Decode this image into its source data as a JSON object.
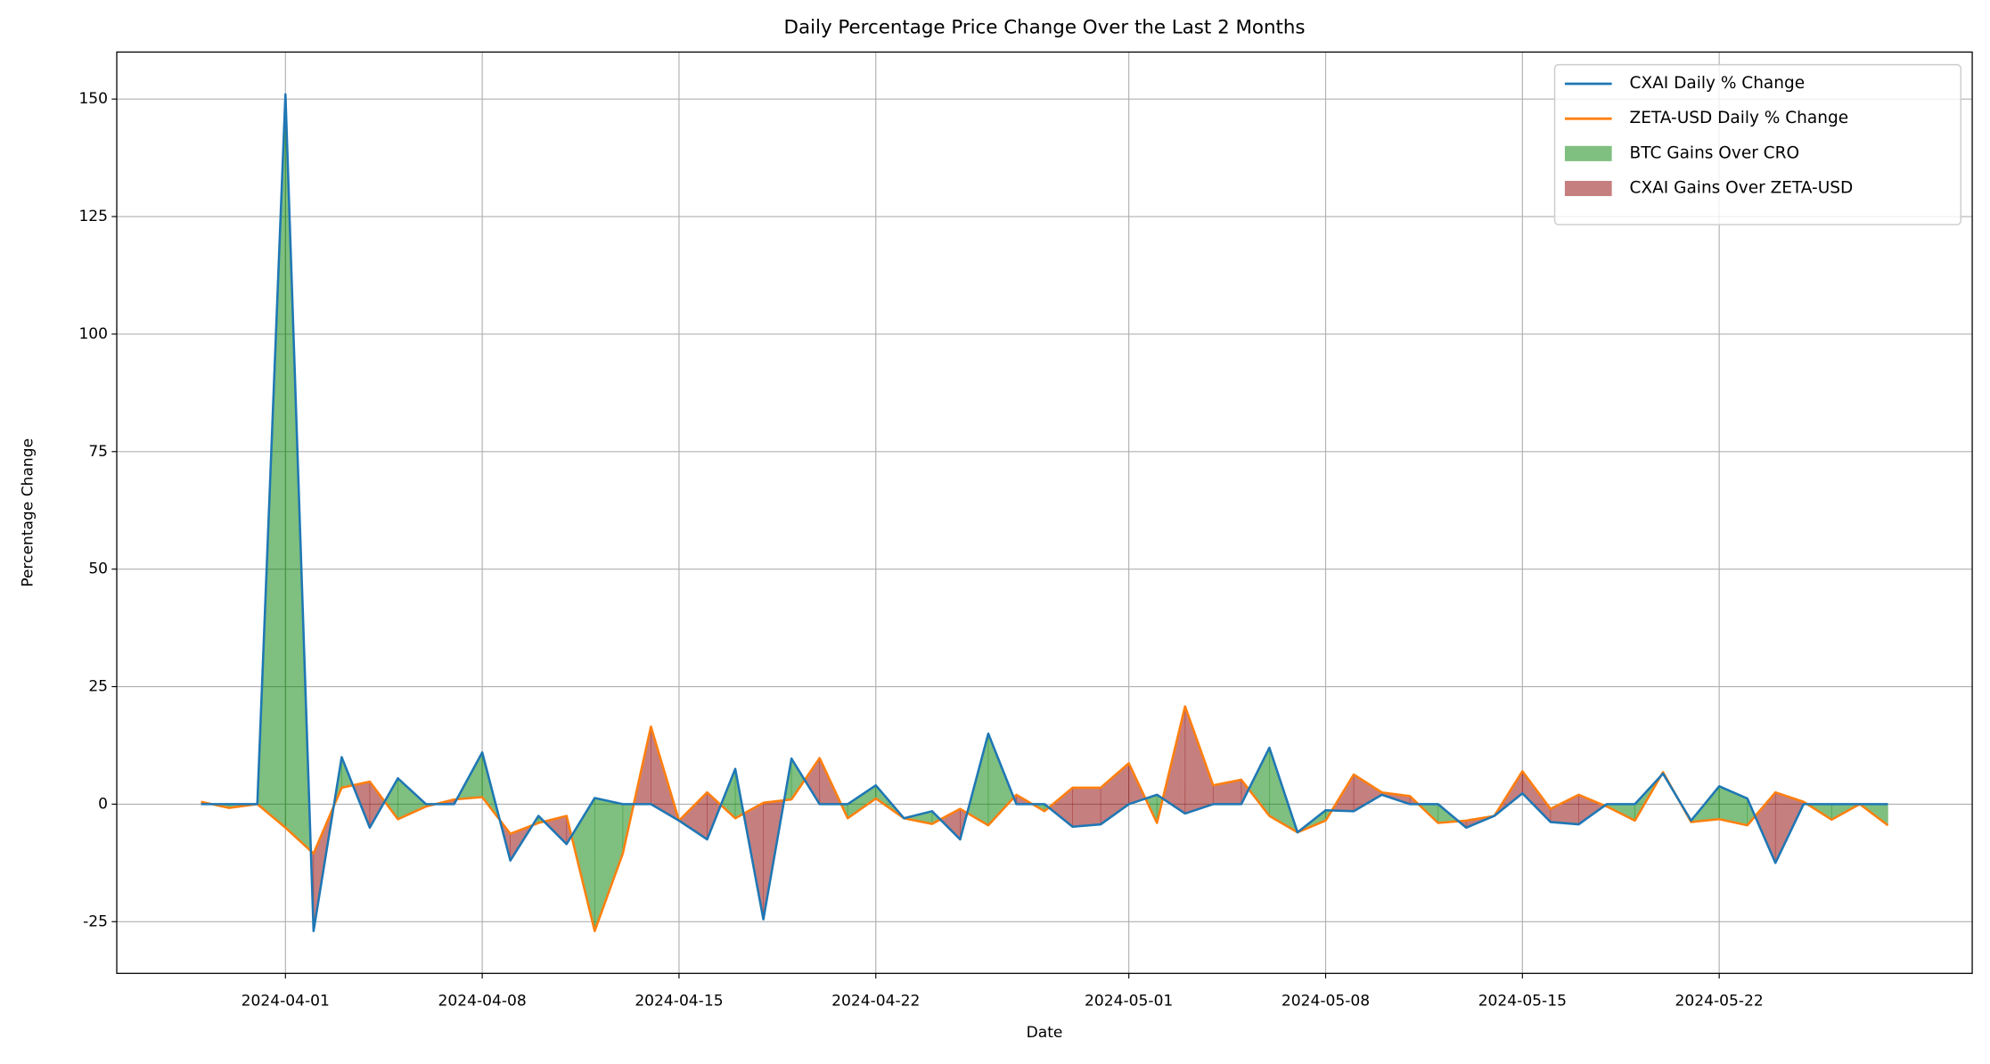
{
  "chart_data": {
    "type": "line",
    "title": "Daily Percentage Price Change Over the Last 2 Months",
    "x_label": "Date",
    "y_label": "Percentage Change",
    "x": [
      "2024-03-29",
      "2024-03-30",
      "2024-03-31",
      "2024-04-01",
      "2024-04-02",
      "2024-04-03",
      "2024-04-04",
      "2024-04-05",
      "2024-04-06",
      "2024-04-07",
      "2024-04-08",
      "2024-04-09",
      "2024-04-10",
      "2024-04-11",
      "2024-04-12",
      "2024-04-13",
      "2024-04-14",
      "2024-04-15",
      "2024-04-16",
      "2024-04-17",
      "2024-04-18",
      "2024-04-19",
      "2024-04-20",
      "2024-04-21",
      "2024-04-22",
      "2024-04-23",
      "2024-04-24",
      "2024-04-25",
      "2024-04-26",
      "2024-04-27",
      "2024-04-28",
      "2024-04-29",
      "2024-04-30",
      "2024-05-01",
      "2024-05-02",
      "2024-05-03",
      "2024-05-04",
      "2024-05-05",
      "2024-05-06",
      "2024-05-07",
      "2024-05-08",
      "2024-05-09",
      "2024-05-10",
      "2024-05-11",
      "2024-05-12",
      "2024-05-13",
      "2024-05-14",
      "2024-05-15",
      "2024-05-16",
      "2024-05-17",
      "2024-05-18",
      "2024-05-19",
      "2024-05-20",
      "2024-05-21",
      "2024-05-22",
      "2024-05-23",
      "2024-05-24",
      "2024-05-25",
      "2024-05-26",
      "2024-05-27",
      "2024-05-28"
    ],
    "series": [
      {
        "name": "CXAI Daily % Change",
        "color": "#1f77b4",
        "values": [
          0,
          0,
          0,
          151,
          -27,
          10,
          -5,
          5.5,
          0,
          0,
          11,
          -12,
          -2.5,
          -8.5,
          1.3,
          0,
          0,
          -3.5,
          -7.5,
          7.5,
          -24.5,
          9.7,
          0,
          0,
          4,
          -3,
          -1.5,
          -7.5,
          15,
          0,
          0,
          -4.8,
          -4.3,
          0,
          2,
          -2,
          0,
          0,
          12,
          -6,
          -1.3,
          -1.5,
          2,
          0,
          0,
          -5,
          -2.5,
          2.3,
          -3.8,
          -4.3,
          0,
          0,
          6.5,
          -3.5,
          3.8,
          1.2,
          -12.5,
          0,
          0,
          0,
          0
        ]
      },
      {
        "name": "ZETA-USD Daily % Change",
        "color": "#ff7f0e",
        "values": [
          0.5,
          -0.8,
          0,
          -5,
          -10.5,
          3.5,
          4.8,
          -3.2,
          -0.5,
          1,
          1.5,
          -6.3,
          -4,
          -2.5,
          -27,
          -10.5,
          16.5,
          -3.5,
          2.5,
          -3,
          0.3,
          1,
          9.8,
          -3,
          1.2,
          -3,
          -4.2,
          -1,
          -4.5,
          2,
          -1.5,
          3.5,
          3.5,
          8.7,
          -4,
          20.8,
          4,
          5.2,
          -2.5,
          -6,
          -3.5,
          6.3,
          2.5,
          1.7,
          -4,
          -3.5,
          -2.5,
          7,
          -1,
          2,
          -0.5,
          -3.5,
          6.8,
          -3.8,
          -3.2,
          -4.5,
          2.5,
          0.5,
          -3.3,
          0,
          -4.5
        ]
      }
    ],
    "fills": [
      {
        "name": "BTC Gains Over CRO",
        "color": "#008000",
        "alpha": 0.5
      },
      {
        "name": "CXAI Gains Over ZETA-USD",
        "color": "#8b0000",
        "alpha": 0.5
      }
    ],
    "xlim": [
      "2024-03-26",
      "2024-05-31"
    ],
    "xticks": [
      "2024-04-01",
      "2024-04-08",
      "2024-04-15",
      "2024-04-22",
      "2024-05-01",
      "2024-05-08",
      "2024-05-15",
      "2024-05-22"
    ],
    "ylim": [
      -36,
      160
    ],
    "yticks": [
      -25,
      0,
      25,
      50,
      75,
      100,
      125,
      150
    ],
    "grid": true,
    "legend": "upper right"
  }
}
